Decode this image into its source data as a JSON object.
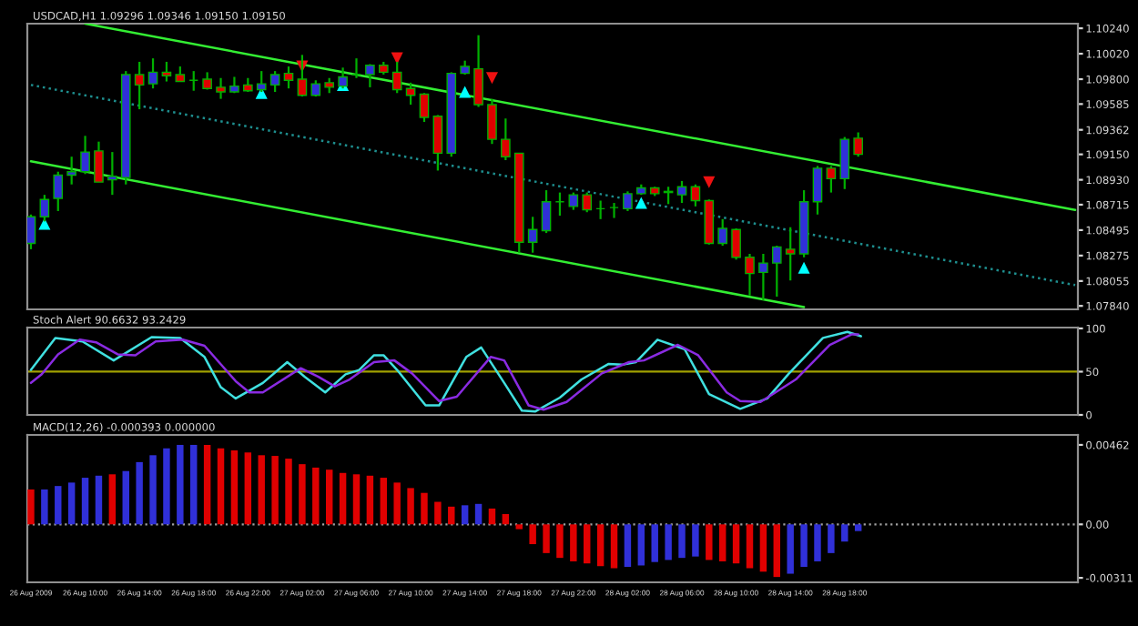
{
  "chart_data": [
    {
      "type": "candlestick",
      "title": "USDCAD,H1 1.09296 1.09346 1.09150 1.09150",
      "x": [
        "2009-08-26T06:00",
        "2009-08-26T07:00",
        "2009-08-26T08:00",
        "2009-08-26T09:00",
        "2009-08-26T10:00",
        "2009-08-26T11:00",
        "2009-08-26T12:00",
        "2009-08-26T13:00",
        "2009-08-26T14:00",
        "2009-08-26T15:00",
        "2009-08-26T16:00",
        "2009-08-26T17:00",
        "2009-08-26T18:00",
        "2009-08-26T19:00",
        "2009-08-26T20:00",
        "2009-08-26T21:00",
        "2009-08-26T22:00",
        "2009-08-26T23:00",
        "2009-08-27T00:00",
        "2009-08-27T01:00",
        "2009-08-27T02:00",
        "2009-08-27T03:00",
        "2009-08-27T04:00",
        "2009-08-27T05:00",
        "2009-08-27T06:00",
        "2009-08-27T07:00",
        "2009-08-27T08:00",
        "2009-08-27T09:00",
        "2009-08-27T10:00",
        "2009-08-27T11:00",
        "2009-08-27T12:00",
        "2009-08-27T13:00",
        "2009-08-27T14:00",
        "2009-08-27T15:00",
        "2009-08-27T16:00",
        "2009-08-27T17:00",
        "2009-08-27T18:00",
        "2009-08-27T19:00",
        "2009-08-27T20:00",
        "2009-08-27T21:00",
        "2009-08-27T22:00",
        "2009-08-27T23:00",
        "2009-08-28T00:00",
        "2009-08-28T01:00",
        "2009-08-28T02:00",
        "2009-08-28T03:00",
        "2009-08-28T04:00",
        "2009-08-28T05:00",
        "2009-08-28T06:00",
        "2009-08-28T07:00",
        "2009-08-28T08:00",
        "2009-08-28T09:00",
        "2009-08-28T10:00",
        "2009-08-28T11:00",
        "2009-08-28T12:00",
        "2009-08-28T13:00",
        "2009-08-28T14:00",
        "2009-08-28T15:00",
        "2009-08-28T16:00",
        "2009-08-28T17:00",
        "2009-08-28T18:00",
        "2009-08-28T19:00"
      ],
      "ohlc": [
        [
          1.0838,
          1.0863,
          1.0833,
          1.0861
        ],
        [
          1.0861,
          1.088,
          1.0857,
          1.0876
        ],
        [
          1.0877,
          1.09,
          1.0866,
          1.0897
        ],
        [
          1.0897,
          1.0913,
          1.0889,
          1.09
        ],
        [
          1.09,
          1.0931,
          1.0898,
          1.0917
        ],
        [
          1.0918,
          1.0926,
          1.0891,
          1.0891
        ],
        [
          1.0893,
          1.0917,
          1.088,
          1.0896
        ],
        [
          1.0895,
          1.0987,
          1.0889,
          1.0984
        ],
        [
          1.0984,
          1.0995,
          1.0954,
          1.0975
        ],
        [
          1.0976,
          1.0998,
          1.0972,
          1.0986
        ],
        [
          1.0986,
          1.0995,
          1.0978,
          1.0983
        ],
        [
          1.0984,
          1.0991,
          1.0978,
          1.0978
        ],
        [
          1.0979,
          1.0987,
          1.097,
          1.0979
        ],
        [
          1.098,
          1.0986,
          1.0971,
          1.0972
        ],
        [
          1.0973,
          1.0981,
          1.0963,
          1.0969
        ],
        [
          1.0969,
          1.0982,
          1.0968,
          1.0974
        ],
        [
          1.0975,
          1.0981,
          1.0969,
          1.097
        ],
        [
          1.0971,
          1.0987,
          1.0969,
          1.0976
        ],
        [
          1.0975,
          1.0987,
          1.0969,
          1.0984
        ],
        [
          1.0985,
          1.0991,
          1.0972,
          1.0979
        ],
        [
          1.098,
          1.1001,
          1.0965,
          1.0966
        ],
        [
          1.0966,
          1.0979,
          1.0965,
          1.0976
        ],
        [
          1.0977,
          1.0981,
          1.0968,
          1.0973
        ],
        [
          1.0974,
          1.099,
          1.0972,
          1.0982
        ],
        [
          1.0984,
          1.0998,
          1.0981,
          1.0984
        ],
        [
          1.0984,
          1.0993,
          1.0973,
          1.0992
        ],
        [
          1.0992,
          1.0995,
          1.0984,
          1.0986
        ],
        [
          1.0986,
          1.0995,
          1.0968,
          1.0971
        ],
        [
          1.0972,
          1.0977,
          1.0958,
          1.0966
        ],
        [
          1.0967,
          1.0968,
          1.0943,
          1.0947
        ],
        [
          1.0948,
          1.0949,
          1.0901,
          1.0916
        ],
        [
          1.0916,
          1.0986,
          1.0913,
          1.0985
        ],
        [
          1.0985,
          1.0996,
          1.0984,
          1.0991
        ],
        [
          1.0989,
          1.1018,
          1.0956,
          1.0958
        ],
        [
          1.0958,
          1.0963,
          1.0924,
          1.0928
        ],
        [
          1.0928,
          1.0946,
          1.091,
          1.0913
        ],
        [
          1.0916,
          1.0916,
          1.083,
          1.0839
        ],
        [
          1.0839,
          1.0861,
          1.083,
          1.085
        ],
        [
          1.0849,
          1.0884,
          1.0847,
          1.0874
        ],
        [
          1.0874,
          1.0882,
          1.0862,
          1.0874
        ],
        [
          1.087,
          1.0882,
          1.0867,
          1.088
        ],
        [
          1.088,
          1.0882,
          1.0865,
          1.0867
        ],
        [
          1.0868,
          1.0875,
          1.0859,
          1.0868
        ],
        [
          1.0869,
          1.0873,
          1.086,
          1.0869
        ],
        [
          1.0868,
          1.0883,
          1.0866,
          1.0881
        ],
        [
          1.0881,
          1.0889,
          1.088,
          1.0886
        ],
        [
          1.0886,
          1.0887,
          1.0879,
          1.0881
        ],
        [
          1.0883,
          1.0887,
          1.0872,
          1.0882
        ],
        [
          1.088,
          1.0892,
          1.0873,
          1.0887
        ],
        [
          1.0887,
          1.0889,
          1.087,
          1.0875
        ],
        [
          1.0875,
          1.0876,
          1.0837,
          1.0838
        ],
        [
          1.0838,
          1.0859,
          1.0836,
          1.0851
        ],
        [
          1.085,
          1.0851,
          1.0824,
          1.0826
        ],
        [
          1.0826,
          1.0829,
          1.0793,
          1.0812
        ],
        [
          1.0813,
          1.0829,
          1.0789,
          1.0821
        ],
        [
          1.0821,
          1.0836,
          1.0792,
          1.0835
        ],
        [
          1.0833,
          1.0852,
          1.0806,
          1.0829
        ],
        [
          1.0829,
          1.0884,
          1.0826,
          1.0874
        ],
        [
          1.0874,
          1.0905,
          1.0863,
          1.0903
        ],
        [
          1.0903,
          1.0905,
          1.0882,
          1.0894
        ],
        [
          1.0894,
          1.093,
          1.0885,
          1.0928
        ],
        [
          1.0929,
          1.0934,
          1.0913,
          1.0915
        ]
      ],
      "colors": [
        "#3030d8",
        "#3030d8",
        "#3030d8",
        "#3030d8",
        "#3030d8",
        "#e00000",
        "#3030d8",
        "#3030d8",
        "#e00000",
        "#3030d8",
        "#e00000",
        "#e00000",
        "#00b000",
        "#e00000",
        "#e00000",
        "#3030d8",
        "#e00000",
        "#3030d8",
        "#3030d8",
        "#e00000",
        "#e00000",
        "#3030d8",
        "#e00000",
        "#3030d8",
        "#00b000",
        "#3030d8",
        "#e00000",
        "#e00000",
        "#e00000",
        "#e00000",
        "#e00000",
        "#3030d8",
        "#3030d8",
        "#e00000",
        "#e00000",
        "#e00000",
        "#e00000",
        "#3030d8",
        "#3030d8",
        "#00b000",
        "#3030d8",
        "#e00000",
        "#00b000",
        "#00b000",
        "#3030d8",
        "#3030d8",
        "#e00000",
        "#e00000",
        "#3030d8",
        "#e00000",
        "#e00000",
        "#3030d8",
        "#e00000",
        "#e00000",
        "#3030d8",
        "#3030d8",
        "#e00000",
        "#3030d8",
        "#3030d8",
        "#e00000",
        "#3030d8",
        "#e00000"
      ],
      "series": [
        {
          "type": "line",
          "color": "#33ee33",
          "line_style": "solid",
          "x": [
            "2009-08-26T10:00",
            "2009-08-29T11:00"
          ],
          "values": [
            1.1028,
            1.0867
          ]
        },
        {
          "type": "line",
          "color": "#33ee33",
          "line_style": "solid",
          "x": [
            "2009-08-26T06:00",
            "2009-08-28T15:00"
          ],
          "values": [
            1.0909,
            1.0783
          ]
        },
        {
          "type": "line",
          "color": "#1e8f8f",
          "line_style": "dotted",
          "x": [
            "2009-08-26T06:00",
            "2009-08-29T11:00"
          ],
          "values": [
            1.0975,
            1.0802
          ]
        },
        {
          "type": "scatter",
          "color": "#00ffff",
          "marker": "triangle",
          "x": [
            "2009-08-26T07:00",
            "2009-08-26T23:00",
            "2009-08-27T05:00",
            "2009-08-27T14:00",
            "2009-08-28T03:00",
            "2009-08-28T15:00"
          ],
          "values": [
            1.0855,
            1.0968,
            1.0975,
            1.0969,
            1.0873,
            1.0817
          ]
        },
        {
          "type": "scatter",
          "color": "#ee1111",
          "marker": "triangle_down",
          "x": [
            "2009-08-27T02:00",
            "2009-08-27T09:00",
            "2009-08-27T16:00",
            "2009-08-28T08:00"
          ],
          "values": [
            1.0991,
            1.0998,
            1.0981,
            1.0891
          ]
        }
      ],
      "xlim": [
        "2009-08-26T05:44",
        "2009-08-29T11:12"
      ],
      "ylim": [
        1.0781,
        1.1028
      ],
      "yticks": [
        {
          "value": 1.1024,
          "label": "1.10240"
        },
        {
          "value": 1.1002,
          "label": "1.10020"
        },
        {
          "value": 1.098,
          "label": "1.09800"
        },
        1.09585,
        1.09362,
        {
          "value": 1.0915,
          "label": "1.09150"
        },
        {
          "value": 1.0893,
          "label": "1.08930"
        },
        1.08715,
        1.08495,
        1.08275,
        1.08055,
        {
          "value": 1.0784,
          "label": "1.07840"
        }
      ],
      "tick_labels": "y"
    },
    {
      "type": "line",
      "title": "Stoch Alert 90.6632 93.2429",
      "series": [
        {
          "color": "#40e0e0",
          "x": [
            "2009-08-26T06:00",
            "2009-08-26T07:48",
            "2009-08-26T09:48",
            "2009-08-26T12:06",
            "2009-08-26T14:54",
            "2009-08-26T17:00",
            "2009-08-26T18:48",
            "2009-08-26T20:00",
            "2009-08-26T21:06",
            "2009-08-26T23:06",
            "2009-08-27T00:54",
            "2009-08-27T02:12",
            "2009-08-27T03:42",
            "2009-08-27T05:12",
            "2009-08-27T06:12",
            "2009-08-27T07:18",
            "2009-08-27T08:00",
            "2009-08-27T09:00",
            "2009-08-27T11:06",
            "2009-08-27T12:06",
            "2009-08-27T14:06",
            "2009-08-27T15:12",
            "2009-08-27T16:54",
            "2009-08-27T18:12",
            "2009-08-27T19:12",
            "2009-08-27T21:00",
            "2009-08-27T22:36",
            "2009-08-28T00:36",
            "2009-08-28T01:36",
            "2009-08-28T02:36",
            "2009-08-28T04:12",
            "2009-08-28T06:12",
            "2009-08-28T08:00",
            "2009-08-28T10:18",
            "2009-08-28T12:18",
            "2009-08-28T13:54",
            "2009-08-28T16:24",
            "2009-08-28T18:12",
            "2009-08-28T19:12"
          ],
          "values": [
            52,
            89,
            85,
            63,
            90,
            89,
            67,
            32,
            19,
            37,
            61,
            44,
            26,
            47,
            52,
            69,
            69,
            52,
            11,
            11,
            67,
            78,
            37,
            5,
            4,
            20,
            41,
            59,
            58,
            61,
            87,
            76,
            24,
            7,
            19,
            48,
            89,
            96,
            91
          ]
        },
        {
          "color": "#8a2be2",
          "x": [
            "2009-08-26T06:00",
            "2009-08-26T06:48",
            "2009-08-26T08:00",
            "2009-08-26T09:36",
            "2009-08-26T10:48",
            "2009-08-26T12:24",
            "2009-08-26T13:42",
            "2009-08-26T15:12",
            "2009-08-26T17:12",
            "2009-08-26T18:48",
            "2009-08-26T21:06",
            "2009-08-26T22:06",
            "2009-08-26T23:06",
            "2009-08-27T01:54",
            "2009-08-27T03:12",
            "2009-08-27T04:24",
            "2009-08-27T05:30",
            "2009-08-27T07:18",
            "2009-08-27T08:48",
            "2009-08-27T10:06",
            "2009-08-27T12:06",
            "2009-08-27T13:24",
            "2009-08-27T15:54",
            "2009-08-27T16:54",
            "2009-08-27T18:42",
            "2009-08-27T19:48",
            "2009-08-27T21:30",
            "2009-08-28T00:06",
            "2009-08-28T02:06",
            "2009-08-28T03:12",
            "2009-08-28T05:42",
            "2009-08-28T07:12",
            "2009-08-28T09:18",
            "2009-08-28T10:18",
            "2009-08-28T11:48",
            "2009-08-28T14:24",
            "2009-08-28T16:54",
            "2009-08-28T18:30",
            "2009-08-28T19:00"
          ],
          "values": [
            37,
            47,
            70,
            87,
            84,
            70,
            69,
            85,
            87,
            80,
            39,
            26,
            26,
            54,
            44,
            33,
            41,
            61,
            63,
            48,
            16,
            21,
            67,
            63,
            11,
            6,
            15,
            48,
            61,
            63,
            81,
            69,
            26,
            16,
            15,
            41,
            81,
            93,
            93
          ]
        }
      ],
      "ref_lines": [
        {
          "axis": "y",
          "value": 50,
          "color": "#a0a000"
        }
      ],
      "xlim": [
        "2009-08-26T05:44",
        "2009-08-29T11:12"
      ],
      "ylim": [
        0,
        101
      ],
      "yticks": [
        0,
        50,
        100
      ],
      "tick_labels": "y"
    },
    {
      "type": "bar",
      "title": "MACD(12,26) -0.000393 0.000000",
      "x": [
        "2009-08-26T06:00",
        "2009-08-26T07:00",
        "2009-08-26T08:00",
        "2009-08-26T09:00",
        "2009-08-26T10:00",
        "2009-08-26T11:00",
        "2009-08-26T12:00",
        "2009-08-26T13:00",
        "2009-08-26T14:00",
        "2009-08-26T15:00",
        "2009-08-26T16:00",
        "2009-08-26T17:00",
        "2009-08-26T18:00",
        "2009-08-26T19:00",
        "2009-08-26T20:00",
        "2009-08-26T21:00",
        "2009-08-26T22:00",
        "2009-08-26T23:00",
        "2009-08-27T00:00",
        "2009-08-27T01:00",
        "2009-08-27T02:00",
        "2009-08-27T03:00",
        "2009-08-27T04:00",
        "2009-08-27T05:00",
        "2009-08-27T06:00",
        "2009-08-27T07:00",
        "2009-08-27T08:00",
        "2009-08-27T09:00",
        "2009-08-27T10:00",
        "2009-08-27T11:00",
        "2009-08-27T12:00",
        "2009-08-27T13:00",
        "2009-08-27T14:00",
        "2009-08-27T15:00",
        "2009-08-27T16:00",
        "2009-08-27T17:00",
        "2009-08-27T18:00",
        "2009-08-27T19:00",
        "2009-08-27T20:00",
        "2009-08-27T21:00",
        "2009-08-27T22:00",
        "2009-08-27T23:00",
        "2009-08-28T00:00",
        "2009-08-28T01:00",
        "2009-08-28T02:00",
        "2009-08-28T03:00",
        "2009-08-28T04:00",
        "2009-08-28T05:00",
        "2009-08-28T06:00",
        "2009-08-28T07:00",
        "2009-08-28T08:00",
        "2009-08-28T09:00",
        "2009-08-28T10:00",
        "2009-08-28T11:00",
        "2009-08-28T12:00",
        "2009-08-28T13:00",
        "2009-08-28T14:00",
        "2009-08-28T15:00",
        "2009-08-28T16:00",
        "2009-08-28T17:00",
        "2009-08-28T18:00",
        "2009-08-28T19:00"
      ],
      "values": [
        0.00203,
        0.00203,
        0.00223,
        0.00243,
        0.00271,
        0.00283,
        0.00291,
        0.0031,
        0.00362,
        0.00402,
        0.00442,
        0.00462,
        0.00462,
        0.00462,
        0.00442,
        0.0043,
        0.00418,
        0.00402,
        0.00398,
        0.00382,
        0.0035,
        0.0033,
        0.00318,
        0.00299,
        0.00291,
        0.00283,
        0.00271,
        0.00243,
        0.00211,
        0.00183,
        0.00131,
        0.00103,
        0.00111,
        0.00119,
        0.00092,
        0.0006,
        -0.00028,
        -0.00115,
        -0.00167,
        -0.00195,
        -0.00215,
        -0.00227,
        -0.00243,
        -0.00255,
        -0.00247,
        -0.00239,
        -0.00219,
        -0.00207,
        -0.00195,
        -0.00187,
        -0.00207,
        -0.00215,
        -0.00227,
        -0.00255,
        -0.00275,
        -0.00306,
        -0.00287,
        -0.00247,
        -0.00215,
        -0.00167,
        -0.001,
        -0.00039
      ],
      "colors": [
        "#e00000",
        "#3030d8",
        "#3030d8",
        "#3030d8",
        "#3030d8",
        "#3030d8",
        "#e00000",
        "#3030d8",
        "#3030d8",
        "#3030d8",
        "#3030d8",
        "#3030d8",
        "#3030d8",
        "#e00000",
        "#e00000",
        "#e00000",
        "#e00000",
        "#e00000",
        "#e00000",
        "#e00000",
        "#e00000",
        "#e00000",
        "#e00000",
        "#e00000",
        "#e00000",
        "#e00000",
        "#e00000",
        "#e00000",
        "#e00000",
        "#e00000",
        "#e00000",
        "#e00000",
        "#3030d8",
        "#3030d8",
        "#e00000",
        "#e00000",
        "#e00000",
        "#e00000",
        "#e00000",
        "#e00000",
        "#e00000",
        "#e00000",
        "#e00000",
        "#e00000",
        "#3030d8",
        "#3030d8",
        "#3030d8",
        "#3030d8",
        "#3030d8",
        "#3030d8",
        "#e00000",
        "#e00000",
        "#e00000",
        "#e00000",
        "#e00000",
        "#e00000",
        "#3030d8",
        "#3030d8",
        "#3030d8",
        "#3030d8",
        "#3030d8",
        "#3030d8"
      ],
      "ref_lines": [
        {
          "axis": "y",
          "value": 0,
          "color": "#a0a0a0",
          "line_style": "dotted"
        }
      ],
      "xlim": [
        "2009-08-26T05:44",
        "2009-08-29T11:12"
      ],
      "ylim": [
        -0.00337,
        0.0052
      ],
      "yticks": [
        0.00462,
        {
          "value": 0,
          "label": "0.00"
        },
        -0.00311
      ],
      "xticks": [
        {
          "value": "2009-08-26T06:00",
          "label": "26 Aug 2009"
        },
        {
          "value": "2009-08-26T10:00",
          "label": "26 Aug 10:00"
        },
        {
          "value": "2009-08-26T14:00",
          "label": "26 Aug 14:00"
        },
        {
          "value": "2009-08-26T18:00",
          "label": "26 Aug 18:00"
        },
        {
          "value": "2009-08-26T22:00",
          "label": "26 Aug 22:00"
        },
        {
          "value": "2009-08-27T02:00",
          "label": "27 Aug 02:00"
        },
        {
          "value": "2009-08-27T06:00",
          "label": "27 Aug 06:00"
        },
        {
          "value": "2009-08-27T10:00",
          "label": "27 Aug 10:00"
        },
        {
          "value": "2009-08-27T14:00",
          "label": "27 Aug 14:00"
        },
        {
          "value": "2009-08-27T18:00",
          "label": "27 Aug 18:00"
        },
        {
          "value": "2009-08-27T22:00",
          "label": "27 Aug 22:00"
        },
        {
          "value": "2009-08-28T02:00",
          "label": "28 Aug 02:00"
        },
        {
          "value": "2009-08-28T06:00",
          "label": "28 Aug 06:00"
        },
        {
          "value": "2009-08-28T10:00",
          "label": "28 Aug 10:00"
        },
        {
          "value": "2009-08-28T14:00",
          "label": "28 Aug 14:00"
        },
        {
          "value": "2009-08-28T18:00",
          "label": "28 Aug 18:00"
        }
      ]
    }
  ]
}
